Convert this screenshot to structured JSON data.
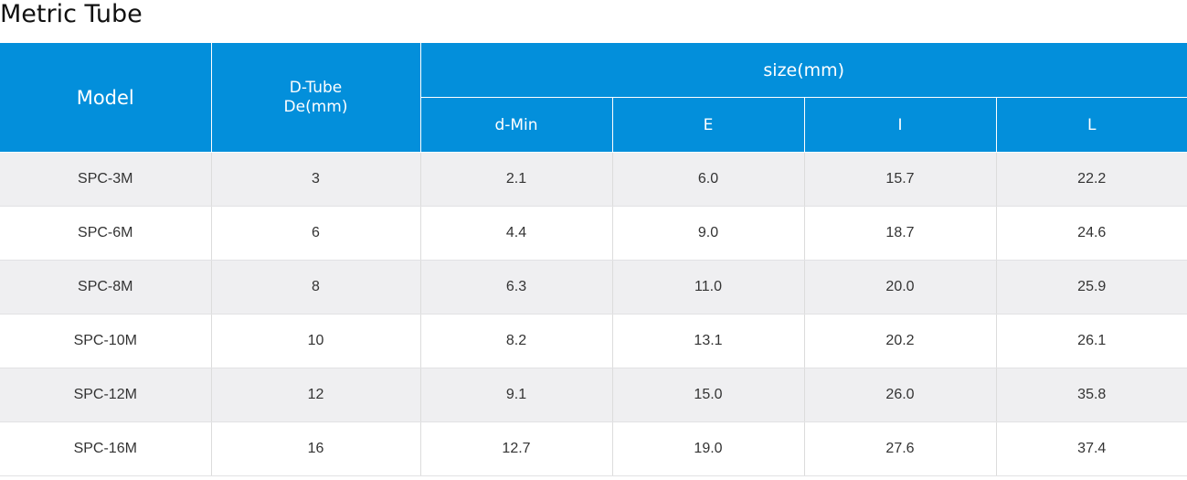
{
  "page": {
    "title": "Metric Tube"
  },
  "table": {
    "headers": {
      "model": "Model",
      "dtube_line1": "D-Tube",
      "dtube_line2": "De(mm)",
      "size_group": "size(mm)",
      "dmin": "d-Min",
      "e": "E",
      "i": "I",
      "l": "L"
    },
    "rows": [
      [
        "SPC-3M",
        "3",
        "2.1",
        "6.0",
        "15.7",
        "22.2"
      ],
      [
        "SPC-6M",
        "6",
        "4.4",
        "9.0",
        "18.7",
        "24.6"
      ],
      [
        "SPC-8M",
        "8",
        "6.3",
        "11.0",
        "20.0",
        "25.9"
      ],
      [
        "SPC-10M",
        "10",
        "8.2",
        "13.1",
        "20.2",
        "26.1"
      ],
      [
        "SPC-12M",
        "12",
        "9.1",
        "15.0",
        "26.0",
        "35.8"
      ],
      [
        "SPC-16M",
        "16",
        "12.7",
        "19.0",
        "27.6",
        "37.4"
      ]
    ]
  },
  "colors": {
    "header_bg": "#038fdb",
    "header_text": "#ffffff",
    "row_alt_bg": "#efeff1",
    "row_bg": "#ffffff"
  }
}
